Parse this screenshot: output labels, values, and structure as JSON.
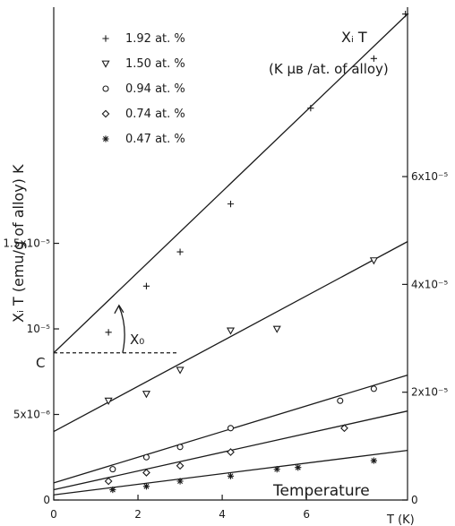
{
  "chart_data": {
    "type": "scatter",
    "title": "",
    "xlabel": "T (K)",
    "ylabel": "Xᵢ T (emu/g of alloy) K",
    "right_ylabel_line1": "Xᵢ T",
    "right_ylabel_line2": "(K μʙ /at. of alloy)",
    "xlim": [
      0,
      8.4
    ],
    "ylim": [
      0,
      2.88e-05
    ],
    "x_ticks": [
      {
        "value": 0,
        "label": "0"
      },
      {
        "value": 2,
        "label": "2"
      },
      {
        "value": 4,
        "label": "4"
      },
      {
        "value": 6,
        "label": "6"
      }
    ],
    "y_ticks_left": [
      {
        "value": 0,
        "label": "0"
      },
      {
        "value": 5e-06,
        "label": "5x10⁻⁶"
      },
      {
        "value": 1e-05,
        "label": "10⁻⁵"
      },
      {
        "value": 1.5e-05,
        "label": "1.5x10⁻⁵"
      }
    ],
    "y_ticks_right": [
      {
        "value": 0,
        "label": "0"
      },
      {
        "value": 6.3e-06,
        "label": "2x10⁻⁵"
      },
      {
        "value": 1.26e-05,
        "label": "4x10⁻⁵"
      },
      {
        "value": 1.89e-05,
        "label": "6x10⁻⁵"
      }
    ],
    "annotations": {
      "c_label": "C",
      "chi0_label": "X₀",
      "c_value": 8.6e-06,
      "bottom_label": "Temperature"
    },
    "series": [
      {
        "name": "1.92 at. %",
        "marker": "plus",
        "points": [
          [
            1.3,
            9.8e-06
          ],
          [
            2.2,
            1.25e-05
          ],
          [
            3.0,
            1.45e-05
          ],
          [
            4.2,
            1.73e-05
          ],
          [
            6.1,
            2.29e-05
          ],
          [
            7.6,
            2.58e-05
          ],
          [
            8.35,
            2.84e-05
          ]
        ],
        "fit": [
          0,
          8.6e-06,
          8.4,
          2.84e-05
        ]
      },
      {
        "name": "1.50 at. %",
        "marker": "triangle-down",
        "points": [
          [
            1.3,
            5.8e-06
          ],
          [
            2.2,
            6.2e-06
          ],
          [
            3.0,
            7.6e-06
          ],
          [
            4.2,
            9.9e-06
          ],
          [
            5.3,
            1e-05
          ],
          [
            7.6,
            1.4e-05
          ]
        ],
        "fit": [
          0,
          4e-06,
          8.4,
          1.51e-05
        ]
      },
      {
        "name": "0.94 at. %",
        "marker": "circle",
        "points": [
          [
            1.4,
            1.8e-06
          ],
          [
            2.2,
            2.5e-06
          ],
          [
            3.0,
            3.1e-06
          ],
          [
            4.2,
            4.2e-06
          ],
          [
            6.8,
            5.8e-06
          ],
          [
            7.6,
            6.5e-06
          ]
        ],
        "fit": [
          0,
          1e-06,
          8.4,
          7.3e-06
        ]
      },
      {
        "name": "0.74 at. %",
        "marker": "diamond",
        "points": [
          [
            1.3,
            1.1e-06
          ],
          [
            2.2,
            1.6e-06
          ],
          [
            3.0,
            2e-06
          ],
          [
            4.2,
            2.8e-06
          ],
          [
            6.9,
            4.2e-06
          ]
        ],
        "fit": [
          0,
          6e-07,
          8.4,
          5.2e-06
        ]
      },
      {
        "name": "0.47 at. %",
        "marker": "asterisk",
        "points": [
          [
            1.4,
            6e-07
          ],
          [
            2.2,
            8e-07
          ],
          [
            3.0,
            1.1e-06
          ],
          [
            4.2,
            1.4e-06
          ],
          [
            5.3,
            1.8e-06
          ],
          [
            5.8,
            1.9e-06
          ],
          [
            7.6,
            2.3e-06
          ]
        ],
        "fit": [
          0,
          3e-07,
          8.4,
          2.9e-06
        ]
      }
    ],
    "grid": false,
    "legend_position": "top-left"
  }
}
